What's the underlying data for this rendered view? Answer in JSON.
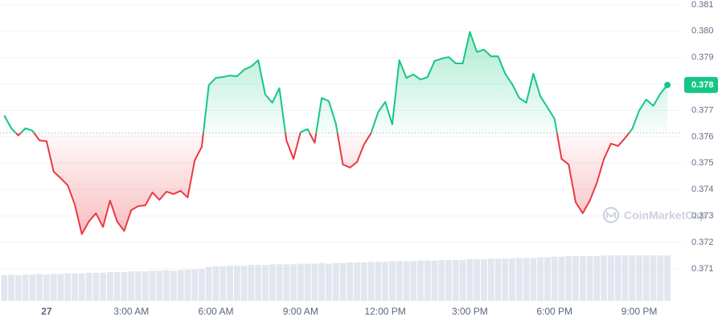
{
  "chart_data": {
    "type": "line",
    "x": [
      -1.5,
      -1.25,
      -1,
      -0.75,
      -0.5,
      -0.25,
      0,
      0.25,
      0.5,
      0.75,
      1,
      1.25,
      1.5,
      1.75,
      2,
      2.25,
      2.5,
      2.75,
      3,
      3.25,
      3.5,
      3.75,
      4,
      4.25,
      4.5,
      4.75,
      5,
      5.25,
      5.5,
      5.75,
      6,
      6.25,
      6.5,
      6.75,
      7,
      7.25,
      7.5,
      7.75,
      8,
      8.25,
      8.5,
      8.75,
      9,
      9.25,
      9.5,
      9.75,
      10,
      10.25,
      10.5,
      10.75,
      11,
      11.25,
      11.5,
      11.75,
      12,
      12.25,
      12.5,
      12.75,
      13,
      13.25,
      13.5,
      13.75,
      14,
      14.25,
      14.5,
      14.75,
      15,
      15.25,
      15.5,
      15.75,
      16,
      16.25,
      16.5,
      16.75,
      17,
      17.25,
      17.5,
      17.75,
      18,
      18.25,
      18.5,
      18.75,
      19,
      19.25,
      19.5,
      19.75,
      20,
      20.25,
      20.5,
      20.75,
      21,
      21.25,
      21.5,
      21.75,
      22
    ],
    "values": [
      0.37681,
      0.37632,
      0.37605,
      0.37632,
      0.37623,
      0.37586,
      0.37583,
      0.37468,
      0.37443,
      0.37416,
      0.37343,
      0.37231,
      0.37279,
      0.3731,
      0.37258,
      0.37358,
      0.37279,
      0.37243,
      0.37322,
      0.37337,
      0.3734,
      0.37389,
      0.37361,
      0.37392,
      0.37383,
      0.37395,
      0.3737,
      0.3751,
      0.37562,
      0.37796,
      0.37823,
      0.37826,
      0.37832,
      0.37829,
      0.37854,
      0.37866,
      0.3789,
      0.3776,
      0.37729,
      0.37784,
      0.37586,
      0.37516,
      0.37617,
      0.37629,
      0.37577,
      0.37747,
      0.37735,
      0.3765,
      0.37495,
      0.37483,
      0.37504,
      0.37571,
      0.37614,
      0.37693,
      0.37732,
      0.37647,
      0.3789,
      0.37823,
      0.37836,
      0.37817,
      0.37826,
      0.37887,
      0.37896,
      0.37902,
      0.37878,
      0.37878,
      0.37997,
      0.37921,
      0.3793,
      0.37905,
      0.37905,
      0.37839,
      0.37799,
      0.37747,
      0.37729,
      0.37839,
      0.37753,
      0.37711,
      0.37668,
      0.37516,
      0.37495,
      0.37352,
      0.3731,
      0.37358,
      0.37425,
      0.37516,
      0.37574,
      0.37565,
      0.37595,
      0.37629,
      0.37699,
      0.37741,
      0.37717,
      0.37763,
      0.37796
    ],
    "volume": [
      40,
      41,
      40,
      41,
      41,
      42,
      41,
      42,
      42,
      43,
      43,
      43,
      44,
      44,
      44,
      45,
      45,
      45,
      46,
      46,
      46,
      47,
      47,
      48,
      47,
      48,
      49,
      49,
      50,
      53,
      54,
      54,
      55,
      55,
      55,
      56,
      56,
      56,
      57,
      57,
      57,
      57,
      58,
      58,
      58,
      59,
      58,
      59,
      59,
      60,
      60,
      60,
      61,
      61,
      61,
      62,
      62,
      62,
      62,
      63,
      63,
      63,
      64,
      64,
      64,
      64,
      65,
      65,
      65,
      66,
      66,
      66,
      66,
      67,
      67,
      67,
      68,
      68,
      69,
      69,
      70,
      70,
      70,
      70,
      70,
      71,
      71,
      71,
      71,
      71,
      71,
      71,
      71,
      71,
      71
    ],
    "volume_lim": [
      0,
      100
    ],
    "reference_price": 0.37614,
    "current_price": {
      "value": 0.37796,
      "label": "0.378"
    },
    "up_color": "#16c784",
    "down_color": "#ea3943",
    "volume_color": "#cfd6e4",
    "xlim": [
      -1.65,
      22.51
    ],
    "xticks": [
      {
        "value": 0,
        "label": "27"
      },
      {
        "value": 3,
        "label": "3:00 AM"
      },
      {
        "value": 6,
        "label": "6:00 AM"
      },
      {
        "value": 9,
        "label": "9:00 AM"
      },
      {
        "value": 12,
        "label": "12:00 PM"
      },
      {
        "value": 15,
        "label": "3:00 PM"
      },
      {
        "value": 18,
        "label": "6:00 PM"
      },
      {
        "value": 21,
        "label": "9:00 PM"
      }
    ],
    "ylim": [
      0.36978,
      0.38118
    ],
    "yticks": [
      0.371,
      0.372,
      0.373,
      0.374,
      0.375,
      0.376,
      0.377,
      0.378,
      0.379,
      {
        "value": 0.38,
        "label": "0.380"
      },
      0.381
    ],
    "grid": true,
    "watermark": "CoinMarketCap"
  }
}
